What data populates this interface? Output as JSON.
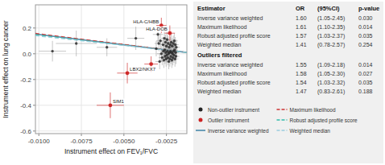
{
  "chart_data": {
    "type": "scatter",
    "xlabel": "Instrument effect on FEV₁/FVC",
    "ylabel": "Instrument effect on lung cancer",
    "xlim": [
      -0.0102,
      -0.0013
    ],
    "ylim": [
      -0.62,
      0.38
    ],
    "xticks": [
      {
        "value": -0.01,
        "label": "-0.0100"
      },
      {
        "value": -0.0075,
        "label": "-0.0075"
      },
      {
        "value": -0.005,
        "label": "-0.0050"
      },
      {
        "value": -0.0025,
        "label": "-0.0025"
      }
    ],
    "yticks": [
      -0.6,
      -0.4,
      -0.2,
      {
        "value": 0.0,
        "label": "0.0"
      },
      0.2
    ],
    "legend": "bottom",
    "series": [
      {
        "name": "Non-outlier instrument",
        "type": "scatter",
        "marker": "dot",
        "color": "#222222",
        "x": [
          -0.0092,
          -0.0078,
          -0.006,
          -0.0043,
          -0.0031,
          -0.003,
          -0.00295,
          -0.0029,
          -0.00285,
          -0.0028,
          -0.00275,
          -0.0027,
          -0.00268,
          -0.00265,
          -0.00262,
          -0.0026,
          -0.00258,
          -0.00256,
          -0.00254,
          -0.00252,
          -0.0025,
          -0.00248,
          -0.00246,
          -0.00244,
          -0.00242,
          -0.0024,
          -0.00238,
          -0.00236,
          -0.00234,
          -0.00232,
          -0.0023,
          -0.00228,
          -0.00226,
          -0.00224,
          -0.00222,
          -0.0022,
          -0.00218,
          -0.00216,
          -0.00214,
          -0.00212,
          -0.0021,
          -0.00208,
          -0.00206,
          -0.00204,
          -0.00202,
          -0.002,
          -0.00198,
          -0.00196,
          -0.00194,
          -0.00192
        ],
        "values": [
          0.02,
          0.08,
          0.05,
          0.12,
          0.04,
          0.15,
          0.08,
          -0.06,
          0.1,
          0.0,
          -0.03,
          0.07,
          0.02,
          -0.05,
          0.12,
          0.03,
          -0.02,
          0.09,
          0.01,
          -0.04,
          0.06,
          -0.01,
          0.11,
          0.02,
          -0.03,
          0.08,
          0.0,
          -0.06,
          0.05,
          0.01,
          -0.04,
          0.07,
          0.02,
          -0.02,
          0.09,
          0.01,
          -0.05,
          0.06,
          0.0,
          -0.03,
          0.08,
          0.02,
          -0.01,
          0.1,
          0.03,
          -0.04,
          0.07,
          0.01,
          -0.02,
          0.05
        ],
        "x_error": [
          0.0008,
          0.0012,
          0.0006,
          0.0005,
          0.0003,
          0.0003,
          0.00025,
          0.00025,
          0.00025,
          0.00025,
          0.0002,
          0.0002,
          0.0002,
          0.0002,
          0.0002,
          0.0002,
          0.0002,
          0.0002,
          0.0002,
          0.0002,
          0.0002,
          0.0002,
          0.0002,
          0.0002,
          0.0002,
          0.0002,
          0.0002,
          0.0002,
          0.0002,
          0.0002,
          0.0002,
          0.0002,
          0.0002,
          0.0002,
          0.0002,
          0.0002,
          0.0002,
          0.0002,
          0.0002,
          0.0002,
          0.0002,
          0.0002,
          0.0002,
          0.0002,
          0.0002,
          0.0002,
          0.0002,
          0.0002,
          0.0002,
          0.0002
        ],
        "y_error": [
          0.08,
          0.1,
          0.07,
          0.09,
          0.06,
          0.07,
          0.06,
          0.06,
          0.06,
          0.06,
          0.06,
          0.06,
          0.06,
          0.06,
          0.06,
          0.06,
          0.06,
          0.06,
          0.06,
          0.06,
          0.06,
          0.06,
          0.06,
          0.06,
          0.06,
          0.06,
          0.06,
          0.06,
          0.06,
          0.06,
          0.06,
          0.06,
          0.06,
          0.06,
          0.06,
          0.06,
          0.06,
          0.06,
          0.06,
          0.06,
          0.06,
          0.06,
          0.06,
          0.06,
          0.06,
          0.06,
          0.06,
          0.06,
          0.06,
          0.06
        ]
      },
      {
        "name": "Outlier instrument",
        "type": "scatter",
        "marker": "dot",
        "color": "#cc2222",
        "x": [
          -0.0028,
          -0.0048,
          -0.0034,
          -0.0023,
          -0.0058
        ],
        "values": [
          0.22,
          -0.15,
          -0.08,
          0.16,
          -0.4
        ],
        "x_error": [
          0.0003,
          0.0006,
          0.0004,
          0.0003,
          0.0008
        ],
        "y_error": [
          0.06,
          0.08,
          0.06,
          0.06,
          0.1
        ],
        "point_labels": [
          "HLA-C/HBB",
          "LBX2/NKX7",
          null,
          "HLA-DOB",
          "SIM1"
        ]
      },
      {
        "name": "Inverse variance weighted",
        "type": "line",
        "line_style": "solid",
        "color": "#4a8aaa",
        "slope": -16.0,
        "intercept": -0.01
      },
      {
        "name": "Maximum likelihood",
        "type": "line",
        "line_style": "dashed",
        "color": "#cc3333",
        "slope": -16.5,
        "intercept": -0.01
      },
      {
        "name": "Robust adjusted profile score",
        "type": "line",
        "line_style": "dashed",
        "color": "#33bbaa",
        "slope": -15.5,
        "intercept": -0.01
      },
      {
        "name": "Weighted median",
        "type": "line",
        "line_style": "dashed",
        "color": "#99ccdd",
        "slope": -14.5,
        "intercept": -0.008
      }
    ],
    "table": {
      "color": "#f0f0f0",
      "header": [
        "Estimator",
        "OR",
        "(95%CI)",
        "p-value"
      ],
      "sections": [
        {
          "rows": [
            [
              "Inverse variance weighted",
              "1.60",
              "(1.05-2.45)",
              "0.030"
            ],
            [
              "Maximum likelihood",
              "1.61",
              "(1.10-2.35)",
              "0.014"
            ],
            [
              "Robust adjusted profile score",
              "1.57",
              "(1.03-2.37)",
              "0.035"
            ],
            [
              "Weighted median",
              "1.41",
              "(0.78-2.57)",
              "0.254"
            ]
          ]
        },
        {
          "title": "Outliers filtered",
          "rows": [
            [
              "Inverse variance weighted",
              "1.55",
              "(1.09-2.18)",
              "0.014"
            ],
            [
              "Maximum likelihood",
              "1.58",
              "(1.05-2.30)",
              "0.027"
            ],
            [
              "Robust adjusted profile score",
              "1.54",
              "(1.03-2.32)",
              "0.035"
            ],
            [
              "Weighted median",
              "1.47",
              "(0.83-2.61)",
              "0.188"
            ]
          ]
        }
      ]
    }
  }
}
